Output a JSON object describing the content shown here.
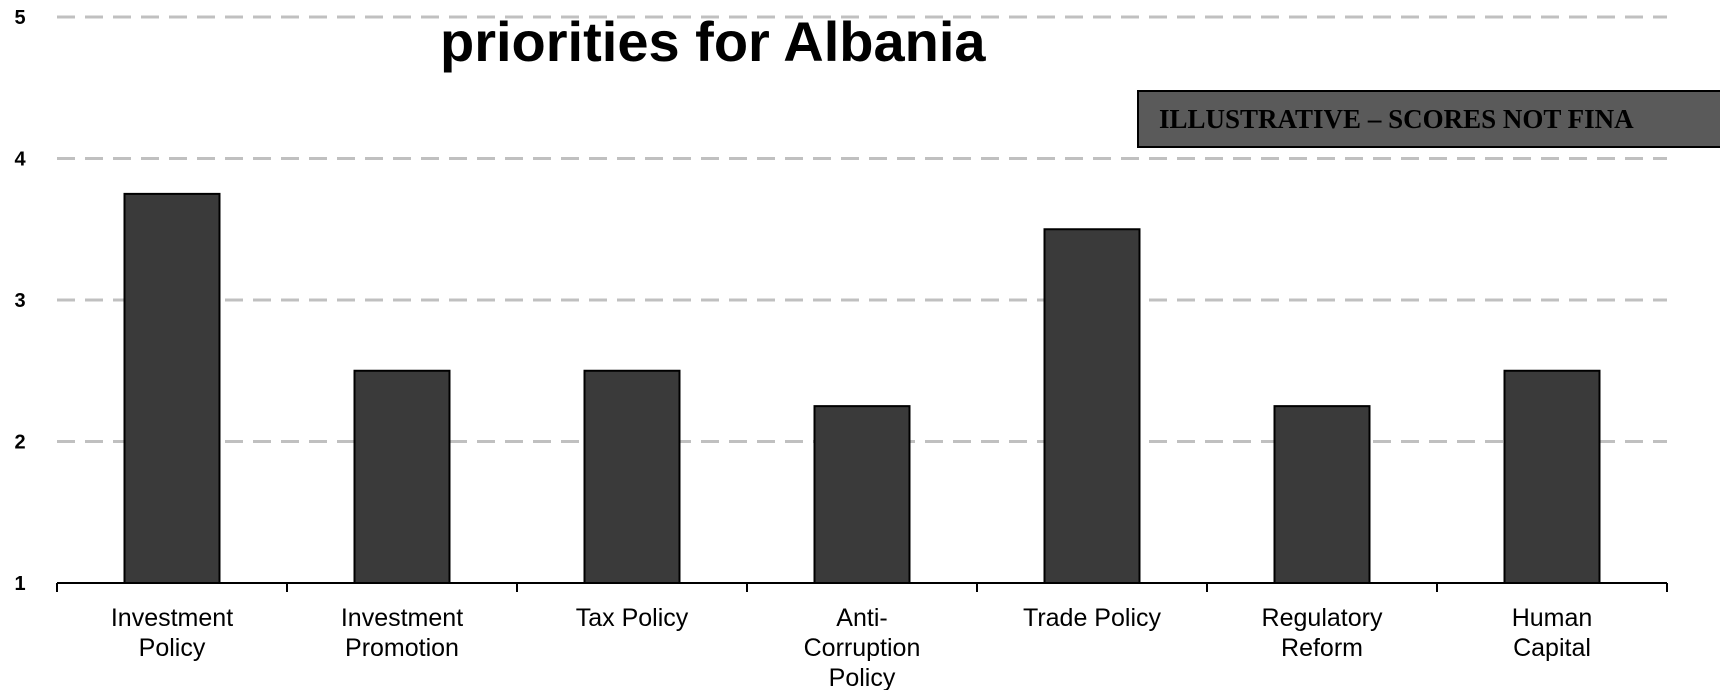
{
  "title": "priorities for Albania",
  "badge": {
    "label": "ILLUSTRATIVE – SCORES NOT FINA"
  },
  "colors": {
    "bar_fill": "#3a3a3a",
    "bar_stroke": "#000000",
    "grid": "#c0c0c0",
    "badge_fill": "#5a5a5a",
    "axis": "#000000"
  },
  "chart_data": {
    "type": "bar",
    "categories": [
      [
        "Investment",
        "Policy"
      ],
      [
        "Investment",
        "Promotion"
      ],
      [
        "Tax Policy"
      ],
      [
        "Anti-",
        "Corruption",
        "Policy"
      ],
      [
        "Trade Policy"
      ],
      [
        "Regulatory",
        "Reform"
      ],
      [
        "Human",
        "Capital"
      ]
    ],
    "values": [
      3.75,
      2.5,
      2.5,
      2.25,
      3.5,
      2.25,
      2.5
    ],
    "ylim": [
      1,
      5
    ],
    "yticks": [
      1,
      2,
      3,
      4,
      5
    ],
    "grid": true,
    "grid_style": "dashed",
    "xlabel": "",
    "ylabel": ""
  }
}
